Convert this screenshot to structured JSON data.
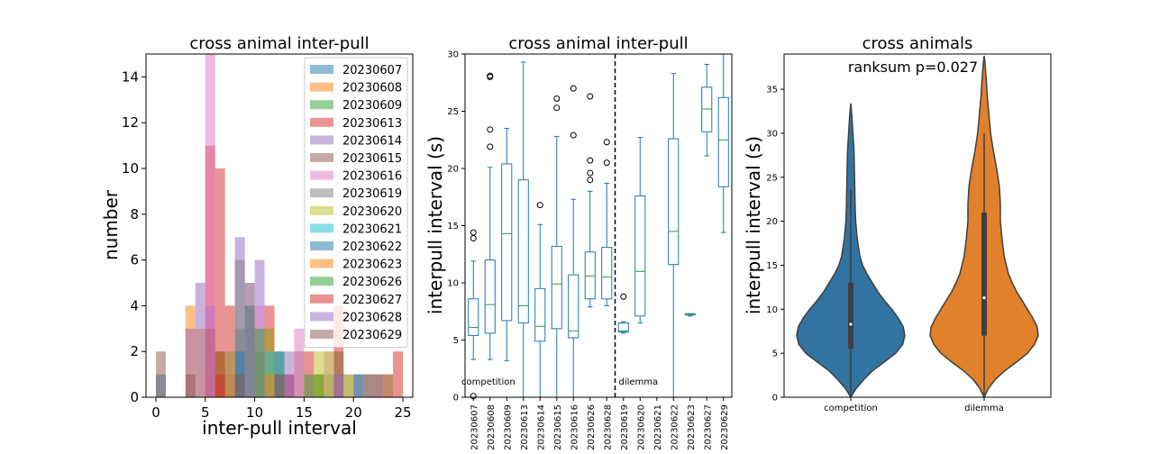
{
  "chart_data": [
    {
      "type": "bar",
      "subtype": "histogram-overlay",
      "title": "cross animal inter-pull",
      "xlabel": "inter-pull interval",
      "ylabel": "number",
      "xlim": [
        -1,
        26
      ],
      "ylim": [
        0,
        15
      ],
      "xticks": [
        "0",
        "5",
        "10",
        "15",
        "20",
        "25"
      ],
      "yticks": [
        "0",
        "2",
        "4",
        "6",
        "8",
        "10",
        "12",
        "14"
      ],
      "legend_position": "top-right",
      "series": [
        {
          "name": "20230607",
          "color": "#1f77b4",
          "bins": [
            [
              0,
              1,
              1
            ]
          ]
        },
        {
          "name": "20230608",
          "color": "#ff7f0e",
          "bins": [
            [
              3,
              4,
              4
            ],
            [
              4,
              5,
              3
            ],
            [
              5,
              6,
              3
            ],
            [
              6,
              7,
              2
            ],
            [
              7,
              8,
              1
            ]
          ]
        },
        {
          "name": "20230609",
          "color": "#2ca02c",
          "bins": [
            [
              6,
              7,
              2
            ],
            [
              8,
              9,
              3
            ],
            [
              10,
              11,
              2
            ],
            [
              12,
              13,
              2
            ],
            [
              17,
              18,
              1
            ],
            [
              18,
              19,
              2
            ]
          ]
        },
        {
          "name": "20230613",
          "color": "#d62728",
          "bins": [
            [
              5,
              6,
              11
            ],
            [
              6,
              7,
              10
            ],
            [
              7,
              8,
              4
            ],
            [
              11,
              12,
              4
            ],
            [
              15,
              16,
              2
            ],
            [
              18,
              19,
              4
            ],
            [
              24,
              25,
              2
            ]
          ]
        },
        {
          "name": "20230614",
          "color": "#9467bd",
          "bins": [
            [
              3,
              4,
              3
            ],
            [
              4,
              5,
              5
            ],
            [
              5,
              6,
              4
            ],
            [
              8,
              9,
              7
            ],
            [
              10,
              11,
              6
            ],
            [
              13,
              14,
              1
            ]
          ]
        },
        {
          "name": "20230615",
          "color": "#8c564b",
          "bins": [
            [
              0,
              1,
              2
            ],
            [
              3,
              4,
              1
            ],
            [
              5,
              6,
              3
            ],
            [
              11,
              12,
              3
            ],
            [
              14,
              15,
              2
            ],
            [
              20,
              21,
              1
            ]
          ]
        },
        {
          "name": "20230616",
          "color": "#e377c2",
          "bins": [
            [
              5,
              6,
              15
            ],
            [
              9,
              10,
              5
            ],
            [
              10,
              11,
              4
            ],
            [
              14,
              15,
              3
            ],
            [
              17,
              18,
              2
            ]
          ]
        },
        {
          "name": "20230619",
          "color": "#7f7f7f",
          "bins": [
            [
              8,
              9,
              6
            ],
            [
              9,
              10,
              5
            ],
            [
              12,
              13,
              1
            ],
            [
              19,
              20,
              1
            ],
            [
              21,
              22,
              1
            ]
          ]
        },
        {
          "name": "20230620",
          "color": "#bcbd22",
          "bins": [
            [
              11,
              12,
              3
            ],
            [
              16,
              17,
              2
            ],
            [
              17,
              18,
              2
            ],
            [
              19,
              20,
              1
            ]
          ]
        },
        {
          "name": "20230621",
          "color": "#17becf",
          "bins": [
            [
              7,
              8,
              2
            ],
            [
              11,
              12,
              2
            ],
            [
              22,
              23,
              1
            ]
          ]
        },
        {
          "name": "20230622",
          "color": "#1f77b4",
          "bins": [
            [
              8,
              9,
              2
            ],
            [
              12,
              13,
              2
            ],
            [
              20,
              21,
              1
            ]
          ]
        },
        {
          "name": "20230623",
          "color": "#ff7f0e",
          "bins": [
            [
              7,
              8,
              2
            ],
            [
              11,
              12,
              1
            ],
            [
              16,
              17,
              1
            ],
            [
              23,
              24,
              1
            ]
          ]
        },
        {
          "name": "20230626",
          "color": "#2ca02c",
          "bins": [
            [
              9,
              10,
              4
            ],
            [
              10,
              11,
              3
            ],
            [
              15,
              16,
              1
            ],
            [
              16,
              17,
              1
            ]
          ]
        },
        {
          "name": "20230627",
          "color": "#d62728",
          "bins": [
            [
              6,
              7,
              1
            ],
            [
              13,
              14,
              1
            ],
            [
              22,
              23,
              1
            ]
          ]
        },
        {
          "name": "20230628",
          "color": "#9467bd",
          "bins": [
            [
              9,
              10,
              4
            ],
            [
              13,
              14,
              2
            ],
            [
              18,
              19,
              1
            ]
          ]
        },
        {
          "name": "20230629",
          "color": "#8c564b",
          "bins": [
            [
              8,
              9,
              1
            ],
            [
              12,
              13,
              1
            ],
            [
              21,
              22,
              1
            ],
            [
              23,
              24,
              1
            ]
          ]
        }
      ]
    },
    {
      "type": "box",
      "title": "cross animal inter-pull",
      "xlabel": "",
      "ylabel": "interpull interval (s)",
      "ylim": [
        0,
        30
      ],
      "yticks": [
        "0",
        "5",
        "10",
        "15",
        "20",
        "25",
        "30"
      ],
      "divider_after_index": 8,
      "annotations": [
        "competition",
        "dilemma"
      ],
      "color": "#1f77b4",
      "boxes": [
        {
          "label": "20230607",
          "min": 3.3,
          "q1": 5.4,
          "median": 6.1,
          "q3": 8.6,
          "max": 11.9,
          "outliers": [
            0.1,
            13.9,
            14.4
          ]
        },
        {
          "label": "20230608",
          "min": 3.3,
          "q1": 5.6,
          "median": 8.1,
          "q3": 12.0,
          "max": 20.1,
          "outliers": [
            21.9,
            23.4,
            28.0,
            28.1
          ]
        },
        {
          "label": "20230609",
          "min": 3.2,
          "q1": 6.7,
          "median": 14.3,
          "q3": 20.4,
          "max": 23.5,
          "outliers": []
        },
        {
          "label": "20230613",
          "min": 0,
          "q1": 6.5,
          "median": 8.0,
          "q3": 19.0,
          "max": 29.3,
          "outliers": []
        },
        {
          "label": "20230614",
          "min": 0,
          "q1": 4.9,
          "median": 6.2,
          "q3": 9.5,
          "max": 15.1,
          "outliers": [
            16.8
          ]
        },
        {
          "label": "20230615",
          "min": 0,
          "q1": 6.0,
          "median": 9.9,
          "q3": 13.2,
          "max": 22.8,
          "outliers": [
            25.3,
            26.1
          ]
        },
        {
          "label": "20230616",
          "min": 0,
          "q1": 5.2,
          "median": 5.8,
          "q3": 10.7,
          "max": 17.3,
          "outliers": [
            22.9,
            27.0
          ]
        },
        {
          "label": "20230626",
          "min": 7.9,
          "q1": 8.6,
          "median": 10.6,
          "q3": 12.7,
          "max": 18.0,
          "outliers": [
            19.0,
            19.6,
            20.7,
            26.3
          ]
        },
        {
          "label": "20230628",
          "min": 8.0,
          "q1": 8.6,
          "median": 10.5,
          "q3": 13.1,
          "max": 18.7,
          "outliers": [
            20.5,
            22.3
          ]
        },
        {
          "label": "20230619",
          "min": 5.6,
          "q1": 5.7,
          "median": 5.8,
          "q3": 6.5,
          "max": 6.6,
          "outliers": [
            8.8
          ]
        },
        {
          "label": "20230620",
          "min": 6.5,
          "q1": 7.1,
          "median": 11.0,
          "q3": 17.6,
          "max": 22.7,
          "outliers": []
        },
        {
          "label": "20230621",
          "min": null,
          "q1": null,
          "median": null,
          "q3": null,
          "max": null,
          "outliers": []
        },
        {
          "label": "20230622",
          "min": 0,
          "q1": 11.6,
          "median": 14.5,
          "q3": 22.6,
          "max": 28.3,
          "outliers": []
        },
        {
          "label": "20230623",
          "min": 7.1,
          "q1": 7.2,
          "median": 7.3,
          "q3": 7.3,
          "max": 7.3,
          "outliers": []
        },
        {
          "label": "20230627",
          "min": 21.1,
          "q1": 23.2,
          "median": 25.2,
          "q3": 27.1,
          "max": 29.1,
          "outliers": []
        },
        {
          "label": "20230629",
          "min": 14.4,
          "q1": 18.4,
          "median": 22.5,
          "q3": 26.2,
          "max": 30.0,
          "outliers": []
        }
      ]
    },
    {
      "type": "violin",
      "title": "cross animals",
      "xlabel": "",
      "ylabel": "interpull interval (s)",
      "ylim": [
        0,
        39
      ],
      "yticks": [
        "0",
        "5",
        "10",
        "15",
        "20",
        "25",
        "30",
        "35"
      ],
      "annotation": "ranksum p=0.027",
      "violins": [
        {
          "label": "competition",
          "color": "#3274a1",
          "q1": 5.5,
          "median": 8.3,
          "q3": 13.0,
          "whisker_min": 0,
          "whisker_max": 23.6,
          "profile": [
            [
              0,
              0.0
            ],
            [
              1,
              0.1
            ],
            [
              2,
              0.24
            ],
            [
              3,
              0.4
            ],
            [
              4,
              0.62
            ],
            [
              5,
              0.83
            ],
            [
              6,
              0.96
            ],
            [
              7,
              1.0
            ],
            [
              8,
              0.97
            ],
            [
              9,
              0.88
            ],
            [
              10,
              0.76
            ],
            [
              11,
              0.62
            ],
            [
              12,
              0.5
            ],
            [
              13,
              0.4
            ],
            [
              14,
              0.3
            ],
            [
              15,
              0.22
            ],
            [
              16,
              0.17
            ],
            [
              18,
              0.12
            ],
            [
              20,
              0.09
            ],
            [
              22,
              0.08
            ],
            [
              25,
              0.07
            ],
            [
              28,
              0.06
            ],
            [
              30,
              0.04
            ],
            [
              32,
              0.02
            ],
            [
              33.4,
              0.0
            ]
          ]
        },
        {
          "label": "dilemma",
          "color": "#e1812c",
          "q1": 7.0,
          "median": 11.3,
          "q3": 21.0,
          "whisker_min": 0,
          "whisker_max": 30.0,
          "profile": [
            [
              0,
              0.0
            ],
            [
              1,
              0.08
            ],
            [
              2,
              0.2
            ],
            [
              3,
              0.38
            ],
            [
              4,
              0.6
            ],
            [
              5,
              0.8
            ],
            [
              6,
              0.93
            ],
            [
              7,
              1.0
            ],
            [
              8,
              0.98
            ],
            [
              9,
              0.9
            ],
            [
              10,
              0.8
            ],
            [
              11,
              0.7
            ],
            [
              12,
              0.6
            ],
            [
              13,
              0.52
            ],
            [
              14,
              0.45
            ],
            [
              16,
              0.37
            ],
            [
              18,
              0.33
            ],
            [
              20,
              0.3
            ],
            [
              22,
              0.3
            ],
            [
              24,
              0.28
            ],
            [
              26,
              0.23
            ],
            [
              28,
              0.17
            ],
            [
              30,
              0.12
            ],
            [
              32,
              0.09
            ],
            [
              34,
              0.06
            ],
            [
              36,
              0.04
            ],
            [
              38,
              0.015
            ],
            [
              38.8,
              0.0
            ]
          ]
        }
      ]
    }
  ]
}
